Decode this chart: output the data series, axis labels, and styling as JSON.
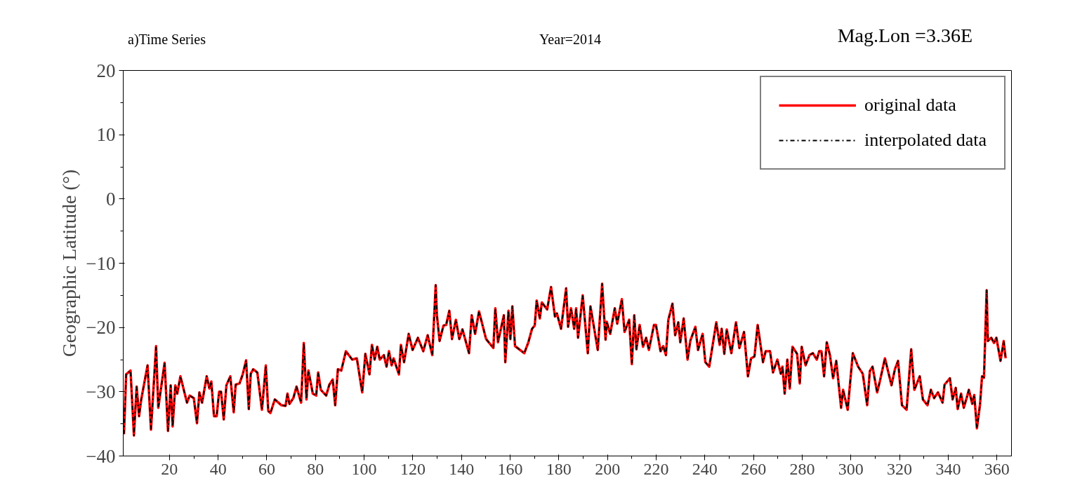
{
  "chart_data": {
    "type": "line",
    "title": "a)Time Series",
    "annotations": [
      "Year=2014",
      "Mag.Lon =3.36E"
    ],
    "ylabel": "Geographic Latitude (°)",
    "x": [
      1.3,
      2.2,
      4,
      5.4,
      6.5,
      7.5,
      8.4,
      11,
      12.4,
      14.5,
      15.4,
      18,
      19.4,
      20.5,
      21.3,
      22.4,
      23.2,
      24.5,
      27.2,
      28.3,
      30,
      31.3,
      32.3,
      33.4,
      35.3,
      36.4,
      37.2,
      38.3,
      39.4,
      40.4,
      41.2,
      42.3,
      43.4,
      45,
      46.4,
      47.2,
      48.8,
      50.1,
      51.5,
      52.6,
      53.4,
      54.4,
      56.1,
      58,
      59.6,
      60.6,
      61.5,
      63.3,
      66,
      67.7,
      68.5,
      69.3,
      70.9,
      72.2,
      74.1,
      75.2,
      76.3,
      77.1,
      78.9,
      80.3,
      81.1,
      82.2,
      84.4,
      85.7,
      87.1,
      88.1,
      89.2,
      90.6,
      92.5,
      95.1,
      97,
      99.2,
      100.5,
      102.2,
      103.2,
      104.3,
      105.4,
      106.4,
      108.1,
      109.2,
      110.2,
      111.3,
      112.1,
      114.3,
      115.1,
      116.4,
      118.3,
      119.9,
      122.1,
      124.3,
      126.1,
      128,
      129.4,
      129.9,
      131,
      132.6,
      133.7,
      135,
      136.1,
      137.7,
      139.1,
      140.4,
      143.1,
      144.2,
      145.6,
      147.2,
      150.1,
      153.1,
      153.9,
      155,
      157.4,
      158,
      159.3,
      160.1,
      160.9,
      162,
      165.8,
      167.4,
      169,
      170.1,
      170.9,
      172.2,
      173,
      175.2,
      176.8,
      178.4,
      179.2,
      180.9,
      183,
      183.8,
      185,
      186.3,
      187.1,
      187.9,
      189.8,
      191.9,
      193,
      196,
      197.8,
      199.2,
      199.7,
      201.1,
      203,
      204,
      205.9,
      207,
      208.9,
      210,
      211,
      211.9,
      213.2,
      214.6,
      215.9,
      217,
      219.1,
      219.9,
      221.8,
      222.9,
      224,
      225,
      226.7,
      227.8,
      229.1,
      229.9,
      231.3,
      232.9,
      234,
      236.1,
      237.2,
      239.1,
      240.2,
      241.8,
      244.7,
      246.1,
      246.9,
      248,
      249,
      250.9,
      252.8,
      254.2,
      256.1,
      257.7,
      259,
      260.4,
      261.7,
      263.9,
      265,
      266.8,
      268,
      269.8,
      271.2,
      271.9,
      272.8,
      273.9,
      274.9,
      276,
      277.9,
      279,
      279.8,
      281.4,
      283,
      284.4,
      286,
      287,
      287.9,
      289,
      290.1,
      291.4,
      292.7,
      294,
      296,
      296.8,
      298.7,
      300.8,
      303,
      304.9,
      306.7,
      307.8,
      308.9,
      310.8,
      311.9,
      314,
      316.7,
      318.1,
      319.4,
      321,
      322.9,
      324.8,
      326.1,
      328.3,
      329.6,
      331.5,
      332.9,
      334.2,
      335.8,
      337.7,
      338.5,
      340.7,
      341.8,
      343.1,
      343.9,
      345.3,
      346.4,
      347.7,
      348.5,
      349.9,
      350.7,
      351.8,
      353.1,
      353.9,
      354.7,
      355.8,
      356.3,
      357.7,
      358.8,
      359.8,
      361.5,
      362.8,
      363.6
    ],
    "series": [
      {
        "name": "interpolated data",
        "color": "#000000",
        "line_style": "dashdot",
        "values": [
          -36.6,
          -27.3,
          -26.7,
          -36.8,
          -29.2,
          -33.8,
          -31.2,
          -25.9,
          -35.9,
          -22.9,
          -32.5,
          -25.5,
          -36.1,
          -29,
          -35.4,
          -29,
          -30.3,
          -27.6,
          -31.7,
          -30.6,
          -31,
          -34.9,
          -30.1,
          -31.7,
          -27.6,
          -29.5,
          -28.4,
          -33.8,
          -33.8,
          -30,
          -30,
          -34.3,
          -29,
          -27.6,
          -33.2,
          -28.9,
          -28.7,
          -27.3,
          -25.1,
          -32.7,
          -27.2,
          -26.5,
          -27,
          -32.8,
          -25.9,
          -33,
          -33.3,
          -31.2,
          -32.1,
          -32.2,
          -30.3,
          -31.9,
          -31,
          -29.2,
          -31.7,
          -22.4,
          -31.2,
          -26.7,
          -30.3,
          -30.6,
          -27,
          -29.7,
          -30.6,
          -28.9,
          -28.1,
          -32.1,
          -26.5,
          -26.7,
          -23.7,
          -25,
          -24.8,
          -30.1,
          -24.1,
          -27.3,
          -22.7,
          -25,
          -23,
          -25,
          -24.3,
          -26.1,
          -23.7,
          -25.9,
          -24.8,
          -27.3,
          -22.7,
          -25.4,
          -21,
          -23.5,
          -21.6,
          -23.7,
          -21.2,
          -24.3,
          -13.4,
          -18.1,
          -22.1,
          -19.7,
          -19.6,
          -17.4,
          -21.8,
          -18.8,
          -21.8,
          -20.3,
          -24,
          -18.1,
          -21,
          -17.5,
          -21.8,
          -23.2,
          -17,
          -22.3,
          -18.1,
          -25.4,
          -17.4,
          -21.8,
          -16.7,
          -22.9,
          -24,
          -22.4,
          -20.2,
          -19.7,
          -15.8,
          -18.6,
          -16.1,
          -17.2,
          -13.7,
          -18.3,
          -17.8,
          -20.2,
          -13.9,
          -19.9,
          -17,
          -20.2,
          -17,
          -21.6,
          -15,
          -24,
          -16.7,
          -23.5,
          -13.2,
          -21.9,
          -19.1,
          -21,
          -17,
          -19.4,
          -15.6,
          -20.7,
          -18.8,
          -25.7,
          -18.1,
          -23.4,
          -19.6,
          -23,
          -21.6,
          -23.5,
          -19.6,
          -19.6,
          -23.7,
          -22.9,
          -24.3,
          -18.8,
          -16.3,
          -21.2,
          -19.2,
          -22.3,
          -18.6,
          -25,
          -22.1,
          -19.9,
          -23.5,
          -21,
          -25.4,
          -26.1,
          -19.2,
          -22.7,
          -20.2,
          -24.1,
          -20.3,
          -24,
          -19.2,
          -23.2,
          -20.7,
          -27.6,
          -24.8,
          -24.5,
          -19.6,
          -25.4,
          -23.7,
          -23.7,
          -27,
          -25,
          -27.2,
          -26.1,
          -30.3,
          -25,
          -29.5,
          -23,
          -24.1,
          -28.7,
          -23,
          -25.9,
          -24.3,
          -24,
          -25,
          -23.7,
          -23.7,
          -27.6,
          -22.3,
          -24.3,
          -27.9,
          -25.2,
          -32.5,
          -29.7,
          -32.8,
          -24,
          -26.1,
          -27.2,
          -32.1,
          -26.8,
          -26.1,
          -30.1,
          -28.4,
          -24.8,
          -29,
          -26.5,
          -25.2,
          -32.1,
          -32.8,
          -23.4,
          -29.7,
          -27.6,
          -31.2,
          -32.1,
          -29.7,
          -31,
          -30.1,
          -31.7,
          -28.9,
          -27.9,
          -31.2,
          -29.4,
          -32.7,
          -30.3,
          -32.5,
          -30.8,
          -29.7,
          -31.9,
          -30.5,
          -35.7,
          -31.9,
          -27.6,
          -27.8,
          -14.2,
          -22.1,
          -21.6,
          -22.4,
          -21.6,
          -25.2,
          -22.1,
          -24.8
        ]
      },
      {
        "name": "original data",
        "color": "#ff0000",
        "line_style": "solid",
        "values": [
          -36.6,
          -27.3,
          -26.7,
          -36.8,
          -29.2,
          -33.8,
          -31.2,
          -25.9,
          -35.9,
          -22.9,
          -32.5,
          -25.5,
          -36.1,
          -29,
          -35.4,
          -29,
          -30.3,
          -27.6,
          -31.7,
          -30.6,
          -31,
          -34.9,
          -30.1,
          -31.7,
          -27.6,
          -29.5,
          -28.4,
          -33.8,
          -33.8,
          -30,
          -30,
          -34.3,
          -29,
          -27.6,
          -33.2,
          -28.9,
          -28.7,
          -27.3,
          -25.1,
          -32.7,
          -27.2,
          -26.5,
          -27,
          -32.8,
          -25.9,
          -33,
          -33.3,
          -31.2,
          -32.1,
          -32.2,
          -30.3,
          -31.9,
          -31,
          -29.2,
          -31.7,
          -22.4,
          -31.2,
          -26.7,
          -30.3,
          -30.6,
          -27,
          -29.7,
          -30.6,
          -28.9,
          -28.1,
          -32.1,
          -26.5,
          -26.7,
          -23.7,
          -25,
          -24.8,
          -30.1,
          -24.1,
          -27.3,
          -22.7,
          -25,
          -23,
          -25,
          -24.3,
          -26.1,
          -23.7,
          -25.9,
          -24.8,
          -27.3,
          -22.7,
          -25.4,
          -21,
          -23.5,
          -21.6,
          -23.7,
          -21.2,
          -24.3,
          -13.4,
          -18.1,
          -22.1,
          -19.7,
          -19.6,
          -17.4,
          -21.8,
          -18.8,
          -21.8,
          -20.3,
          -24,
          -18.1,
          -21,
          -17.5,
          -21.8,
          -23.2,
          -17,
          -22.3,
          -18.1,
          -25.4,
          -17.4,
          -21.8,
          -16.7,
          -22.9,
          -24,
          -22.4,
          -20.2,
          -19.7,
          -15.8,
          -18.6,
          -16.1,
          -17.2,
          -13.7,
          -18.3,
          -17.8,
          -20.2,
          -13.9,
          -19.9,
          -17,
          -20.2,
          -17,
          -21.6,
          -15,
          -24,
          -16.7,
          -23.5,
          -13.2,
          -21.9,
          -19.1,
          -21,
          -17,
          -19.4,
          -15.6,
          -20.7,
          -18.8,
          -25.7,
          -18.1,
          -23.4,
          -19.6,
          -23,
          -21.6,
          -23.5,
          -19.6,
          -19.6,
          -23.7,
          -22.9,
          -24.3,
          -18.8,
          -16.3,
          -21.2,
          -19.2,
          -22.3,
          -18.6,
          -25,
          -22.1,
          -19.9,
          -23.5,
          -21,
          -25.4,
          -26.1,
          -19.2,
          -22.7,
          -20.2,
          -24.1,
          -20.3,
          -24,
          -19.2,
          -23.2,
          -20.7,
          -27.6,
          -24.8,
          -24.5,
          -19.6,
          -25.4,
          -23.7,
          -23.7,
          -27,
          -25,
          -27.2,
          -26.1,
          -30.3,
          -25,
          -29.5,
          -23,
          -24.1,
          -28.7,
          -23,
          -25.9,
          -24.3,
          -24,
          -25,
          -23.7,
          -23.7,
          -27.6,
          -22.3,
          -24.3,
          -27.9,
          -25.2,
          -32.5,
          -29.7,
          -32.8,
          -24,
          -26.1,
          -27.2,
          -32.1,
          -26.8,
          -26.1,
          -30.1,
          -28.4,
          -24.8,
          -29,
          -26.5,
          -25.2,
          -32.1,
          -32.8,
          -23.4,
          -29.7,
          -27.6,
          -31.2,
          -32.1,
          -29.7,
          -31,
          -30.1,
          -31.7,
          -28.9,
          -27.9,
          -31.2,
          -29.4,
          -32.7,
          -30.3,
          -32.5,
          -30.8,
          -29.7,
          -31.9,
          -30.5,
          -35.7,
          -31.9,
          -27.6,
          -27.8,
          -14.2,
          -22.1,
          -21.6,
          -22.4,
          -21.6,
          -25.2,
          -22.1,
          -24.8
        ]
      }
    ],
    "xlim": [
      1,
      366
    ],
    "xticks": [
      20,
      40,
      60,
      80,
      100,
      120,
      140,
      160,
      180,
      200,
      220,
      240,
      260,
      280,
      300,
      320,
      340,
      360
    ],
    "ylim": [
      -40,
      20
    ],
    "yticks": [
      -40,
      -30,
      -20,
      -10,
      0,
      10,
      20
    ],
    "grid": false,
    "legend": "top right",
    "marker": "none"
  }
}
